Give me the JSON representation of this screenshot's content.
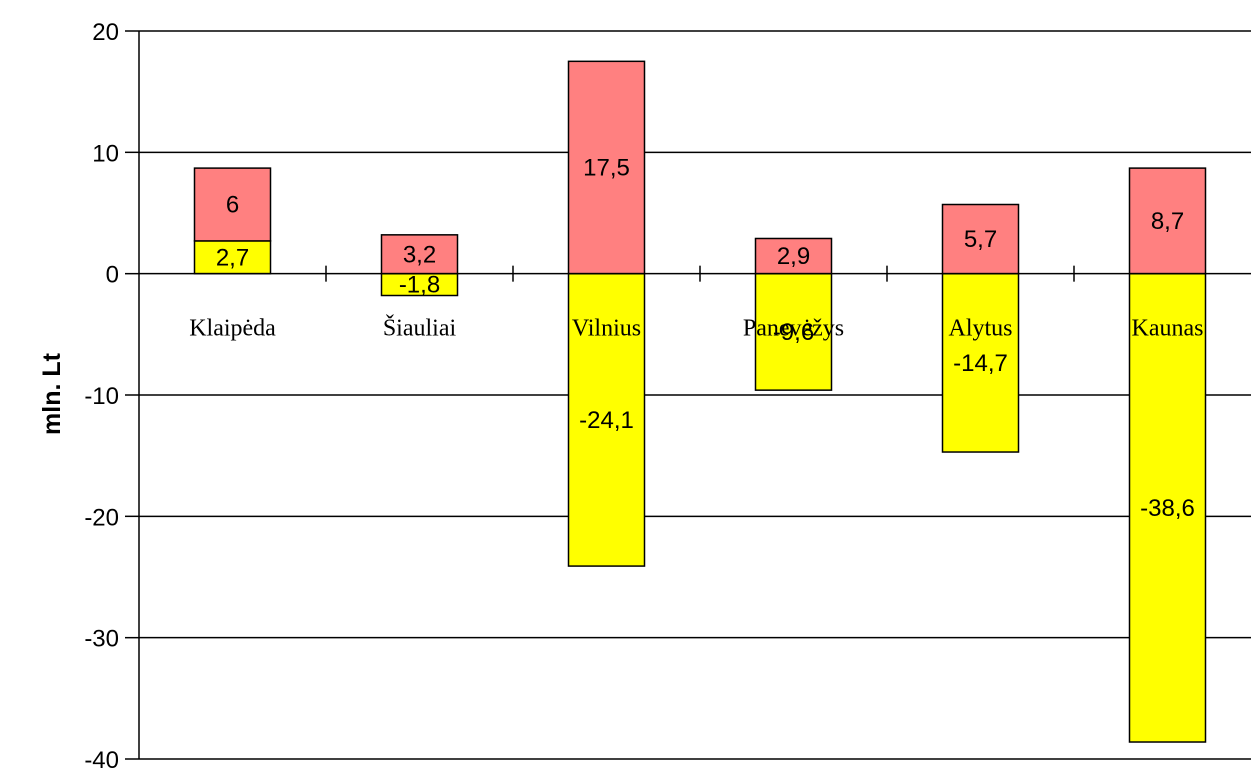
{
  "chart_data": {
    "type": "bar",
    "stacked": true,
    "categories": [
      "Klaipėda",
      "Šiauliai",
      "Vilnius",
      "Panevėžys",
      "Alytus",
      "Kaunas"
    ],
    "series": [
      {
        "values": [
          2.7,
          -1.8,
          -24.1,
          -9.6,
          -14.7,
          -38.6
        ],
        "labels": [
          "2,7",
          "-1,8",
          "-24,1",
          "-9,6",
          "-14,7",
          "-38,6"
        ],
        "color": "#ffff00"
      },
      {
        "values": [
          6,
          3.2,
          17.5,
          2.9,
          5.7,
          8.7
        ],
        "labels": [
          "6",
          "3,2",
          "17,5",
          "2,9",
          "5,7",
          "8,7"
        ],
        "color": "#ff8080"
      }
    ],
    "ylabel": "mln. Lt",
    "ylim": [
      -40,
      20
    ],
    "yticks": [
      20,
      10,
      0,
      -10,
      -20,
      -30,
      -40
    ],
    "grid": true
  }
}
